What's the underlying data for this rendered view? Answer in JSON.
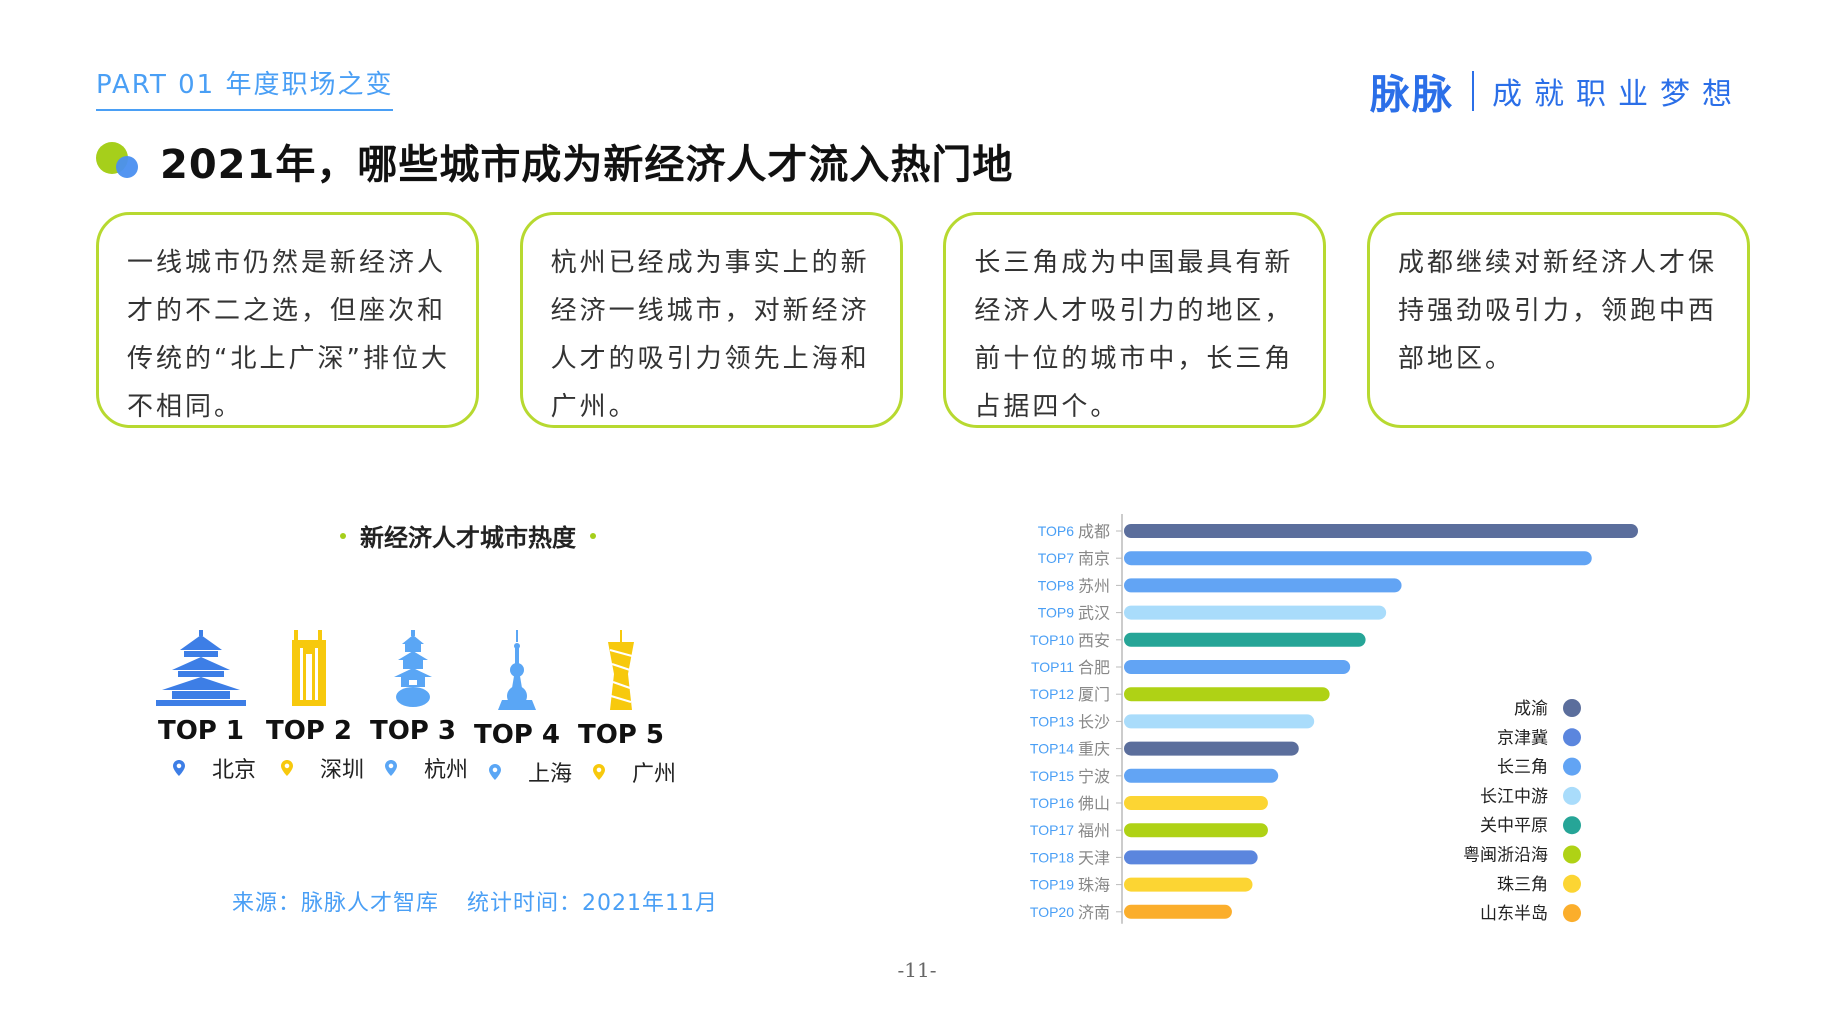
{
  "header": {
    "part_label": "PART 01 年度职场之变",
    "brand_logo": "脉脉",
    "brand_slogan": "成就职业梦想"
  },
  "title": "2021年，哪些城市成为新经济人才流入热门地",
  "cards": [
    "一线城市仍然是新经济人才的不二之选，但座次和传统的“北上广深”排位大不相同。",
    "杭州已经成为事实上的新经济一线城市，对新经济人才的吸引力领先上海和广州。",
    "长三角成为中国最具有新经济人才吸引力的地区，前十位的城市中，长三角占据四个。",
    "成都继续对新经济人才保持强劲吸引力，领跑中西部地区。"
  ],
  "heat": {
    "title": "新经济人才城市热度",
    "top5": [
      {
        "rank": "TOP 1",
        "city": "北京",
        "icon": "temple-of-heaven-icon",
        "color": "#3d7ee6"
      },
      {
        "rank": "TOP 2",
        "city": "深圳",
        "icon": "twin-towers-icon",
        "color": "#f7c90d"
      },
      {
        "rank": "TOP 3",
        "city": "杭州",
        "icon": "pagoda-icon",
        "color": "#5aa6f5"
      },
      {
        "rank": "TOP 4",
        "city": "上海",
        "icon": "oriental-pearl-tower-icon",
        "color": "#5aa6f5"
      },
      {
        "rank": "TOP 5",
        "city": "广州",
        "icon": "canton-tower-icon",
        "color": "#f7c90d"
      }
    ],
    "source_label": "来源：脉脉人才智库",
    "time_label": "统计时间：2021年11月"
  },
  "chart_data": {
    "type": "bar",
    "orientation": "horizontal",
    "title": "",
    "xlabel": "",
    "ylabel": "",
    "categories": [
      {
        "rank": "TOP6",
        "city": "成都"
      },
      {
        "rank": "TOP7",
        "city": "南京"
      },
      {
        "rank": "TOP8",
        "city": "苏州"
      },
      {
        "rank": "TOP9",
        "city": "武汉"
      },
      {
        "rank": "TOP10",
        "city": "西安"
      },
      {
        "rank": "TOP11",
        "city": "合肥"
      },
      {
        "rank": "TOP12",
        "city": "厦门"
      },
      {
        "rank": "TOP13",
        "city": "长沙"
      },
      {
        "rank": "TOP14",
        "city": "重庆"
      },
      {
        "rank": "TOP15",
        "city": "宁波"
      },
      {
        "rank": "TOP16",
        "city": "佛山"
      },
      {
        "rank": "TOP17",
        "city": "福州"
      },
      {
        "rank": "TOP18",
        "city": "天津"
      },
      {
        "rank": "TOP19",
        "city": "珠海"
      },
      {
        "rank": "TOP20",
        "city": "济南"
      }
    ],
    "values": [
      100,
      91,
      54,
      51,
      47,
      44,
      40,
      37,
      34,
      30,
      28,
      28,
      26,
      25,
      21
    ],
    "region": [
      "成渝",
      "长三角",
      "长三角",
      "长江中游",
      "关中平原",
      "长三角",
      "粤闽浙沿海",
      "长江中游",
      "成渝",
      "长三角",
      "珠三角",
      "粤闽浙沿海",
      "京津冀",
      "珠三角",
      "山东半岛"
    ],
    "xlim": [
      0,
      100
    ],
    "grid": false,
    "legend_position": "right",
    "legend": [
      {
        "name": "成渝",
        "color": "#5b6e9c"
      },
      {
        "name": "京津冀",
        "color": "#5b86de"
      },
      {
        "name": "长三角",
        "color": "#62a4f4"
      },
      {
        "name": "长江中游",
        "color": "#a9dcfb"
      },
      {
        "name": "关中平原",
        "color": "#26a597"
      },
      {
        "name": "粤闽浙沿海",
        "color": "#afd215"
      },
      {
        "name": "珠三角",
        "color": "#fcd533"
      },
      {
        "name": "山东半岛",
        "color": "#fbae2c"
      }
    ]
  },
  "page_number": "-11-"
}
